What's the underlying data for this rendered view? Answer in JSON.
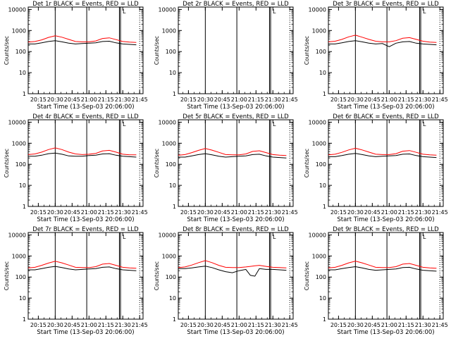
{
  "figure": {
    "xtick_labels": [
      "20:15",
      "20:30",
      "20:45",
      "21:00",
      "21:15",
      "21:30",
      "21:45"
    ],
    "ytick_labels": [
      "1",
      "10",
      "100",
      "1000",
      "10000"
    ],
    "ylabel": "Counts/sec",
    "colors": {
      "events": "#000000",
      "lld": "#ff0000",
      "axes": "#000000"
    }
  },
  "chart_data": [
    {
      "type": "line",
      "title": "Det 1r BLACK = Events, RED = LLD",
      "xlabel": "Start Time (13-Sep-03 20:06:00)",
      "ylabel": "Counts/sec",
      "xlim": [
        "20:06",
        "21:48"
      ],
      "ylim": [
        1,
        10000
      ],
      "yscale": "log",
      "solid_markers": [
        "20:30",
        "20:58",
        "21:27",
        "21:28"
      ],
      "dotted_markers": [
        "21:45"
      ],
      "flag_label": "L",
      "x": [
        "20:06",
        "20:12",
        "20:18",
        "20:24",
        "20:30",
        "20:36",
        "20:42",
        "20:48",
        "20:54",
        "21:00",
        "21:06",
        "21:12",
        "21:18",
        "21:24",
        "21:30",
        "21:36",
        "21:42"
      ],
      "series": [
        {
          "color": "#000000",
          "values": [
            230,
            230,
            260,
            300,
            330,
            290,
            250,
            230,
            240,
            250,
            260,
            300,
            310,
            260,
            230,
            220,
            210
          ]
        },
        {
          "color": "#ff0000",
          "values": [
            280,
            300,
            360,
            470,
            560,
            480,
            380,
            300,
            290,
            290,
            320,
            420,
            450,
            370,
            300,
            280,
            270
          ]
        }
      ]
    },
    {
      "type": "line",
      "title": "Det 2r BLACK = Events, RED = LLD",
      "xlabel": "Start Time (13-Sep-03 20:06:00)",
      "ylabel": "Counts/sec",
      "xlim": [
        "20:06",
        "21:48"
      ],
      "ylim": [
        1,
        10000
      ],
      "yscale": "log",
      "solid_markers": [
        "20:30",
        "20:58",
        "21:27",
        "21:28"
      ],
      "dotted_markers": [
        "21:45"
      ],
      "flag_label": "L",
      "x": [],
      "series": []
    },
    {
      "type": "line",
      "title": "Det 3r BLACK = Events, RED = LLD",
      "xlabel": "Start Time (13-Sep-03 20:06:00)",
      "ylabel": "Counts/sec",
      "xlim": [
        "20:06",
        "21:48"
      ],
      "ylim": [
        1,
        10000
      ],
      "yscale": "log",
      "solid_markers": [
        "20:30",
        "20:58",
        "21:27",
        "21:28"
      ],
      "dotted_markers": [
        "21:45"
      ],
      "flag_label": "L",
      "x": [
        "20:06",
        "20:12",
        "20:18",
        "20:24",
        "20:30",
        "20:36",
        "20:42",
        "20:48",
        "20:54",
        "21:00",
        "21:06",
        "21:12",
        "21:18",
        "21:24",
        "21:30",
        "21:36",
        "21:42"
      ],
      "series": [
        {
          "color": "#000000",
          "values": [
            230,
            230,
            260,
            300,
            330,
            290,
            250,
            230,
            240,
            170,
            250,
            290,
            300,
            250,
            230,
            220,
            210
          ]
        },
        {
          "color": "#ff0000",
          "values": [
            290,
            310,
            380,
            500,
            600,
            480,
            380,
            310,
            290,
            290,
            330,
            430,
            460,
            380,
            310,
            280,
            270
          ]
        }
      ]
    },
    {
      "type": "line",
      "title": "Det 4r BLACK = Events, RED = LLD",
      "xlabel": "Start Time (13-Sep-03 20:06:00)",
      "ylabel": "Counts/sec",
      "xlim": [
        "20:06",
        "21:48"
      ],
      "ylim": [
        1,
        10000
      ],
      "yscale": "log",
      "solid_markers": [
        "20:30",
        "20:58",
        "21:27",
        "21:28"
      ],
      "dotted_markers": [
        "21:45"
      ],
      "flag_label": "L",
      "x": [
        "20:06",
        "20:12",
        "20:18",
        "20:24",
        "20:30",
        "20:36",
        "20:42",
        "20:48",
        "20:54",
        "21:00",
        "21:06",
        "21:12",
        "21:18",
        "21:24",
        "21:30",
        "21:36",
        "21:42"
      ],
      "series": [
        {
          "color": "#000000",
          "values": [
            240,
            240,
            270,
            320,
            340,
            300,
            250,
            240,
            240,
            260,
            270,
            310,
            320,
            270,
            240,
            230,
            220
          ]
        },
        {
          "color": "#ff0000",
          "values": [
            290,
            310,
            380,
            500,
            600,
            500,
            380,
            310,
            290,
            300,
            330,
            430,
            460,
            380,
            300,
            280,
            280
          ]
        }
      ]
    },
    {
      "type": "line",
      "title": "Det 5r BLACK = Events, RED = LLD",
      "xlabel": "Start Time (13-Sep-03 20:06:00)",
      "ylabel": "Counts/sec",
      "xlim": [
        "20:06",
        "21:48"
      ],
      "ylim": [
        1,
        10000
      ],
      "yscale": "log",
      "solid_markers": [
        "20:30",
        "20:58",
        "21:27",
        "21:28"
      ],
      "dotted_markers": [
        "21:45"
      ],
      "flag_label": "L",
      "x": [
        "20:06",
        "20:12",
        "20:18",
        "20:24",
        "20:30",
        "20:36",
        "20:42",
        "20:48",
        "20:54",
        "21:00",
        "21:06",
        "21:12",
        "21:18",
        "21:24",
        "21:30",
        "21:36",
        "21:42"
      ],
      "series": [
        {
          "color": "#000000",
          "values": [
            220,
            220,
            250,
            290,
            320,
            280,
            240,
            220,
            230,
            240,
            250,
            290,
            300,
            250,
            220,
            210,
            200
          ]
        },
        {
          "color": "#ff0000",
          "values": [
            270,
            290,
            360,
            460,
            560,
            470,
            370,
            290,
            280,
            280,
            310,
            410,
            440,
            360,
            290,
            270,
            260
          ]
        }
      ]
    },
    {
      "type": "line",
      "title": "Det 6r BLACK = Events, RED = LLD",
      "xlabel": "Start Time (13-Sep-03 20:06:00)",
      "ylabel": "Counts/sec",
      "xlim": [
        "20:06",
        "21:48"
      ],
      "ylim": [
        1,
        10000
      ],
      "yscale": "log",
      "solid_markers": [
        "20:30",
        "20:58",
        "21:27",
        "21:28"
      ],
      "dotted_markers": [
        "21:45"
      ],
      "flag_label": "L",
      "x": [
        "20:06",
        "20:12",
        "20:18",
        "20:24",
        "20:30",
        "20:36",
        "20:42",
        "20:48",
        "20:54",
        "21:00",
        "21:06",
        "21:12",
        "21:18",
        "21:24",
        "21:30",
        "21:36",
        "21:42"
      ],
      "series": [
        {
          "color": "#000000",
          "values": [
            230,
            230,
            260,
            300,
            330,
            290,
            250,
            230,
            240,
            250,
            260,
            300,
            310,
            260,
            230,
            220,
            210
          ]
        },
        {
          "color": "#ff0000",
          "values": [
            280,
            300,
            370,
            480,
            580,
            480,
            380,
            300,
            290,
            290,
            320,
            420,
            450,
            370,
            300,
            280,
            270
          ]
        }
      ]
    },
    {
      "type": "line",
      "title": "Det 7r BLACK = Events, RED = LLD",
      "xlabel": "Start Time (13-Sep-03 20:06:00)",
      "ylabel": "Counts/sec",
      "xlim": [
        "20:06",
        "21:48"
      ],
      "ylim": [
        1,
        10000
      ],
      "yscale": "log",
      "solid_markers": [
        "20:30",
        "20:58",
        "21:27",
        "21:28"
      ],
      "dotted_markers": [
        "21:45"
      ],
      "flag_label": "L",
      "x": [
        "20:06",
        "20:12",
        "20:18",
        "20:24",
        "20:30",
        "20:36",
        "20:42",
        "20:48",
        "20:54",
        "21:00",
        "21:06",
        "21:12",
        "21:18",
        "21:24",
        "21:30",
        "21:36",
        "21:42"
      ],
      "series": [
        {
          "color": "#000000",
          "values": [
            220,
            220,
            250,
            290,
            320,
            280,
            240,
            220,
            230,
            240,
            250,
            290,
            300,
            250,
            220,
            210,
            200
          ]
        },
        {
          "color": "#ff0000",
          "values": [
            270,
            290,
            360,
            460,
            560,
            470,
            370,
            290,
            280,
            280,
            310,
            410,
            440,
            360,
            290,
            270,
            260
          ]
        }
      ]
    },
    {
      "type": "line",
      "title": "Det 8r BLACK = Events, RED = LLD",
      "xlabel": "Start Time (13-Sep-03 20:06:00)",
      "ylabel": "Counts/sec",
      "xlim": [
        "20:06",
        "21:48"
      ],
      "ylim": [
        1,
        10000
      ],
      "yscale": "log",
      "solid_markers": [
        "20:30",
        "20:58",
        "21:27",
        "21:28"
      ],
      "dotted_markers": [
        "21:45"
      ],
      "flag_label": "L",
      "x": [
        "20:06",
        "20:12",
        "20:18",
        "20:24",
        "20:30",
        "20:36",
        "20:42",
        "20:48",
        "20:54",
        "21:00",
        "21:06",
        "21:10",
        "21:14",
        "21:18",
        "21:24",
        "21:30",
        "21:36",
        "21:42"
      ],
      "series": [
        {
          "color": "#000000",
          "values": [
            250,
            250,
            270,
            300,
            330,
            280,
            220,
            180,
            160,
            200,
            230,
            120,
            110,
            250,
            230,
            230,
            220,
            210
          ]
        },
        {
          "color": "#ff0000",
          "values": [
            280,
            300,
            370,
            480,
            600,
            480,
            360,
            290,
            280,
            280,
            300,
            320,
            340,
            360,
            320,
            290,
            280,
            270
          ]
        }
      ]
    },
    {
      "type": "line",
      "title": "Det 9r BLACK = Events, RED = LLD",
      "xlabel": "Start Time (13-Sep-03 20:06:00)",
      "ylabel": "Counts/sec",
      "xlim": [
        "20:06",
        "21:48"
      ],
      "ylim": [
        1,
        10000
      ],
      "yscale": "log",
      "solid_markers": [
        "20:30",
        "20:58",
        "21:27",
        "21:28"
      ],
      "dotted_markers": [
        "21:45"
      ],
      "flag_label": "L",
      "x": [
        "20:06",
        "20:12",
        "20:18",
        "20:24",
        "20:30",
        "20:36",
        "20:42",
        "20:48",
        "20:54",
        "21:00",
        "21:06",
        "21:12",
        "21:18",
        "21:24",
        "21:30",
        "21:36",
        "21:42"
      ],
      "series": [
        {
          "color": "#000000",
          "values": [
            220,
            220,
            250,
            280,
            310,
            270,
            230,
            210,
            220,
            230,
            240,
            280,
            290,
            240,
            210,
            200,
            190
          ]
        },
        {
          "color": "#ff0000",
          "values": [
            270,
            290,
            360,
            470,
            570,
            470,
            370,
            290,
            280,
            280,
            310,
            410,
            440,
            360,
            290,
            270,
            260
          ]
        }
      ]
    }
  ]
}
